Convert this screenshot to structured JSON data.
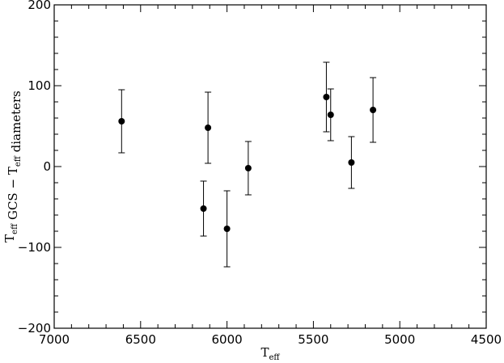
{
  "chart_data": {
    "type": "scatter",
    "title": "",
    "xlabel": {
      "main": "T",
      "sub": "eff"
    },
    "ylabel": {
      "parts": [
        {
          "main": "T",
          "sub": "eff"
        },
        {
          "main": " GCS − T",
          "sub": "eff"
        },
        {
          "main": " diameters",
          "sub": ""
        }
      ]
    },
    "x_reversed": true,
    "xlim": [
      7000,
      4500
    ],
    "ylim": [
      -200,
      200
    ],
    "x_ticks": [
      7000,
      6500,
      6000,
      5500,
      5000,
      4500
    ],
    "y_ticks": [
      -200,
      -100,
      0,
      100,
      200
    ],
    "x_tick_labels": [
      "7000",
      "6500",
      "6000",
      "5500",
      "5000",
      "4500"
    ],
    "y_tick_labels": [
      "−200",
      "−100",
      "0",
      "100",
      "200"
    ],
    "grid": false,
    "legend": "none",
    "points": [
      {
        "x": 6610,
        "y": 56,
        "err": 39
      },
      {
        "x": 6136,
        "y": -52,
        "err": 34
      },
      {
        "x": 6110,
        "y": 48,
        "err": 44
      },
      {
        "x": 6000,
        "y": -77,
        "err": 47
      },
      {
        "x": 5877,
        "y": -2,
        "err": 33
      },
      {
        "x": 5425,
        "y": 86,
        "err": 43
      },
      {
        "x": 5400,
        "y": 64,
        "err": 32
      },
      {
        "x": 5280,
        "y": 5,
        "err": 32
      },
      {
        "x": 5155,
        "y": 70,
        "err": 40
      }
    ]
  }
}
